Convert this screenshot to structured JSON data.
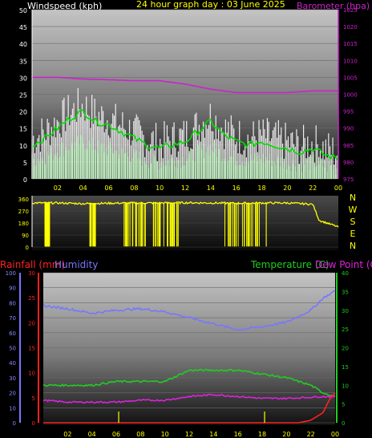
{
  "header": {
    "left_title": "Windspeed (kph)",
    "center_title": "24 hour graph day : 03 June 2025",
    "right_title": "Barometer (hpa)"
  },
  "bottom_header": {
    "rainfall_title": "Rainfall (mm)",
    "humidity_title": "Humidity",
    "temperature_title": "Temperature (C)",
    "dewpoint_title": "Dew Point (C)"
  },
  "colors": {
    "wind_gust": "#ffffff",
    "wind_avg": "#00dd00",
    "wind_light": "#ccffcc",
    "barometer": "#cc22cc",
    "direction": "#ffff00",
    "humidity": "#7777ff",
    "rainfall": "#ff2222",
    "temperature": "#22cc22",
    "dewpoint": "#dd22dd",
    "axis_yellow": "#ffff00",
    "axis_white": "#ffffff"
  },
  "chart_data": [
    {
      "type": "line",
      "name": "wind-barometer",
      "title": "Windspeed (kph)",
      "x_ticks": [
        "02",
        "04",
        "06",
        "08",
        "10",
        "12",
        "14",
        "16",
        "18",
        "20",
        "22",
        "00"
      ],
      "y_left_ticks": [
        "0",
        "5",
        "10",
        "15",
        "20",
        "25",
        "30",
        "35",
        "40",
        "45",
        "50"
      ],
      "y_right_ticks": [
        "975",
        "980",
        "985",
        "990",
        "995",
        "1000",
        "1005",
        "1010",
        "1015",
        "1020",
        "1025"
      ],
      "ylim_left": [
        0,
        50
      ],
      "ylim_right": [
        975,
        1025
      ],
      "series": [
        {
          "name": "Windspeed (kph)",
          "x": [
            0,
            1,
            2,
            3,
            4,
            5,
            6,
            7,
            8,
            9,
            10,
            11,
            12,
            13,
            14,
            15,
            16,
            17,
            18,
            19,
            20,
            21,
            22,
            23,
            24
          ],
          "values": [
            10,
            12,
            15,
            18,
            20,
            17,
            16,
            14,
            12,
            10,
            9,
            10,
            11,
            14,
            17,
            13,
            11,
            10,
            11,
            10,
            9,
            8,
            9,
            7,
            6
          ]
        },
        {
          "name": "Barometer (hpa)",
          "x": [
            0,
            2,
            4,
            6,
            8,
            10,
            12,
            14,
            16,
            18,
            20,
            22,
            24
          ],
          "values": [
            1005,
            1005,
            1004.5,
            1004.3,
            1004,
            1004,
            1003,
            1001.5,
            1000.5,
            1000.5,
            1000.5,
            1001,
            1001
          ]
        }
      ]
    },
    {
      "type": "scatter",
      "name": "wind-direction",
      "x_ticks": [],
      "y_ticks": [
        "360",
        "270",
        "180",
        "90",
        "0"
      ],
      "y_right_labels": [
        "N",
        "W",
        "S",
        "E",
        "N"
      ],
      "ylim": [
        0,
        360
      ],
      "series": [
        {
          "name": "Direction",
          "x": [
            0,
            2,
            4,
            6,
            8,
            10,
            12,
            14,
            16,
            18,
            20,
            22,
            22.5,
            24
          ],
          "values": [
            330,
            330,
            325,
            328,
            330,
            330,
            332,
            330,
            328,
            330,
            330,
            320,
            200,
            150
          ]
        }
      ]
    },
    {
      "type": "line",
      "name": "temp-humidity",
      "title": "Temperature (C)",
      "x_ticks": [
        "02",
        "04",
        "06",
        "08",
        "10",
        "12",
        "14",
        "16",
        "18",
        "20",
        "22",
        "00"
      ],
      "y_left_ticks": [
        "0",
        "10",
        "20",
        "30",
        "40",
        "50",
        "60",
        "70",
        "80",
        "90",
        "100"
      ],
      "y_rain_ticks": [
        "0",
        "5",
        "10",
        "15",
        "20",
        "25",
        "30"
      ],
      "y_right_ticks": [
        "0",
        "5",
        "10",
        "15",
        "20",
        "25",
        "30",
        "35",
        "40"
      ],
      "ylim_humidity": [
        0,
        100
      ],
      "ylim_rain": [
        0,
        30
      ],
      "ylim_temp": [
        0,
        40
      ],
      "series": [
        {
          "name": "Humidity",
          "x": [
            0,
            2,
            4,
            6,
            8,
            10,
            12,
            14,
            16,
            18,
            20,
            22,
            23,
            24
          ],
          "values": [
            78,
            76,
            73,
            75,
            76,
            74,
            70,
            66,
            62,
            64,
            67,
            75,
            83,
            88
          ]
        },
        {
          "name": "Temperature (C)",
          "x": [
            0,
            2,
            4,
            6,
            8,
            10,
            12,
            14,
            16,
            18,
            20,
            22,
            23,
            24
          ],
          "values": [
            10,
            10,
            10,
            11,
            11,
            11,
            14,
            14,
            14,
            13,
            12,
            10,
            8,
            7
          ]
        },
        {
          "name": "Dew Point (C)",
          "x": [
            0,
            2,
            4,
            6,
            8,
            10,
            12,
            14,
            16,
            18,
            20,
            22,
            23,
            24
          ],
          "values": [
            6,
            5.5,
            5.5,
            5.5,
            6,
            6,
            7,
            7.5,
            7,
            6.5,
            6.5,
            6.8,
            7,
            7
          ]
        },
        {
          "name": "Rainfall (mm)",
          "x": [
            0,
            21,
            22,
            23,
            23.5,
            24
          ],
          "values": [
            0,
            0,
            0.5,
            2,
            4.5,
            6
          ]
        }
      ]
    }
  ]
}
